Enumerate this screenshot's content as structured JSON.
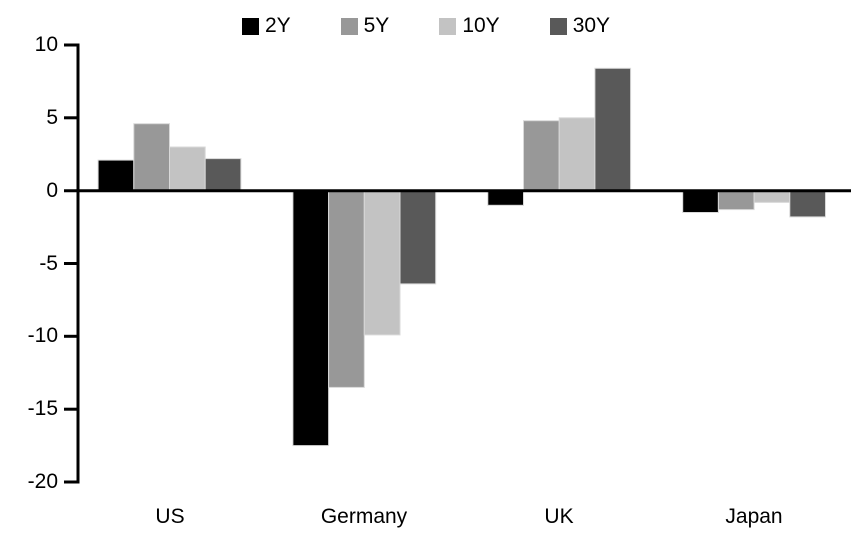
{
  "chart_data": {
    "type": "bar",
    "title": "",
    "categories": [
      "US",
      "Germany",
      "UK",
      "Japan"
    ],
    "series": [
      {
        "name": "2Y",
        "color": "#000000",
        "values": [
          2.1,
          -17.5,
          -1.0,
          -1.5
        ]
      },
      {
        "name": "5Y",
        "color": "#989898",
        "values": [
          4.6,
          -13.5,
          4.8,
          -1.3
        ]
      },
      {
        "name": "10Y",
        "color": "#c3c3c3",
        "values": [
          3.0,
          -9.9,
          5.0,
          -0.8
        ]
      },
      {
        "name": "30Y",
        "color": "#595959",
        "values": [
          2.2,
          -6.4,
          8.4,
          -1.8
        ]
      }
    ],
    "y_axis": {
      "min": -20,
      "max": 10,
      "ticks": [
        10,
        5,
        0,
        -5,
        -10,
        -15,
        -20
      ]
    },
    "legend": {
      "position": "top-center"
    },
    "grid": "off",
    "axis_color": "#000000",
    "bar_border_color": "#d9d9d9",
    "background_color": "#ffffff"
  }
}
